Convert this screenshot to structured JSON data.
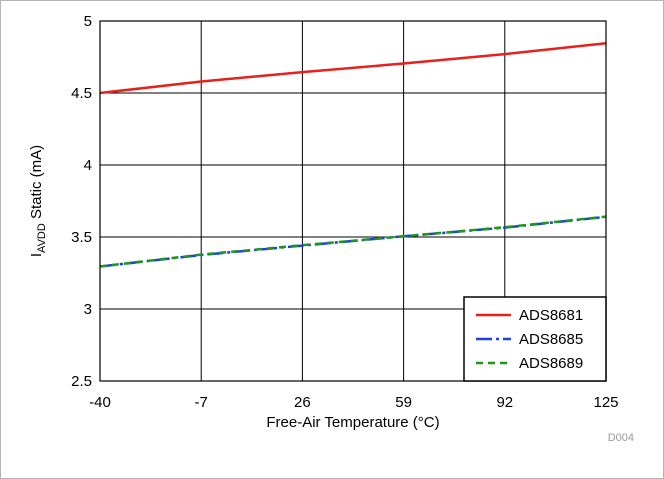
{
  "chart_data": {
    "type": "line",
    "title": "",
    "xlabel": "Free-Air Temperature (°C)",
    "ylabel": {
      "symbol": "I",
      "subscript": "AVDD",
      "suffix": " Static (mA)"
    },
    "x_ticks": [
      -40,
      -7,
      26,
      59,
      92,
      125
    ],
    "y_ticks": [
      "2.5",
      "3",
      "3.5",
      "4",
      "4.5",
      "5"
    ],
    "xlim": [
      -40,
      125
    ],
    "ylim": [
      2.5,
      5
    ],
    "grid": true,
    "legend_position": "bottom-right",
    "footnote": "D004",
    "series": [
      {
        "name": "ADS8681",
        "color": "#e8201c",
        "dash": "solid",
        "x": [
          -40,
          -7,
          26,
          59,
          92,
          125
        ],
        "y": [
          4.5,
          4.58,
          4.645,
          4.705,
          4.77,
          4.845
        ]
      },
      {
        "name": "ADS8685",
        "color": "#1f3fe0",
        "dash": "dashdot",
        "x": [
          -40,
          -7,
          26,
          59,
          92,
          125
        ],
        "y": [
          3.295,
          3.375,
          3.44,
          3.505,
          3.565,
          3.64
        ]
      },
      {
        "name": "ADS8689",
        "color": "#1a9a1a",
        "dash": "dashed",
        "x": [
          -40,
          -7,
          26,
          59,
          92,
          125
        ],
        "y": [
          3.295,
          3.378,
          3.443,
          3.505,
          3.568,
          3.642
        ]
      }
    ]
  }
}
